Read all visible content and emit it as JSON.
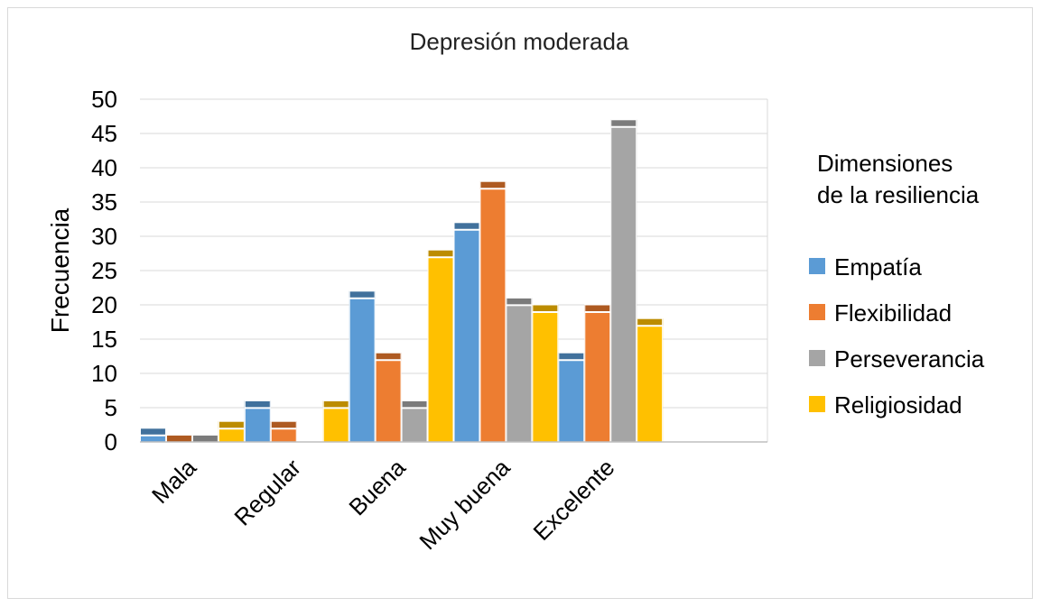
{
  "chart_data": {
    "type": "bar",
    "title": "Depresión moderada",
    "xlabel": "",
    "ylabel": "Frecuencia",
    "ylim": [
      0,
      50
    ],
    "yticks": [
      "0",
      "5",
      "10",
      "15",
      "20",
      "25",
      "30",
      "35",
      "40",
      "45",
      "50"
    ],
    "categories": [
      "Mala",
      "Regular",
      "Buena",
      "Muy buena",
      "Excelente"
    ],
    "grid": true,
    "legend_title_lines": [
      "Dimensiones",
      "de la resiliencia"
    ],
    "legend_position": "right",
    "series": [
      {
        "name": "Empatía",
        "color": "#5b9bd5",
        "cap_color": "#41719c",
        "values": [
          2,
          6,
          22,
          32,
          13
        ]
      },
      {
        "name": "Flexibilidad",
        "color": "#ed7d31",
        "cap_color": "#ae5a21",
        "values": [
          1,
          3,
          13,
          38,
          20
        ]
      },
      {
        "name": "Perseverancia",
        "color": "#a5a5a5",
        "cap_color": "#7b7b7b",
        "values": [
          1,
          0,
          6,
          21,
          47
        ]
      },
      {
        "name": "Religiosidad",
        "color": "#ffc000",
        "cap_color": "#bc8c00",
        "values": [
          3,
          6,
          28,
          20,
          18
        ]
      }
    ]
  }
}
